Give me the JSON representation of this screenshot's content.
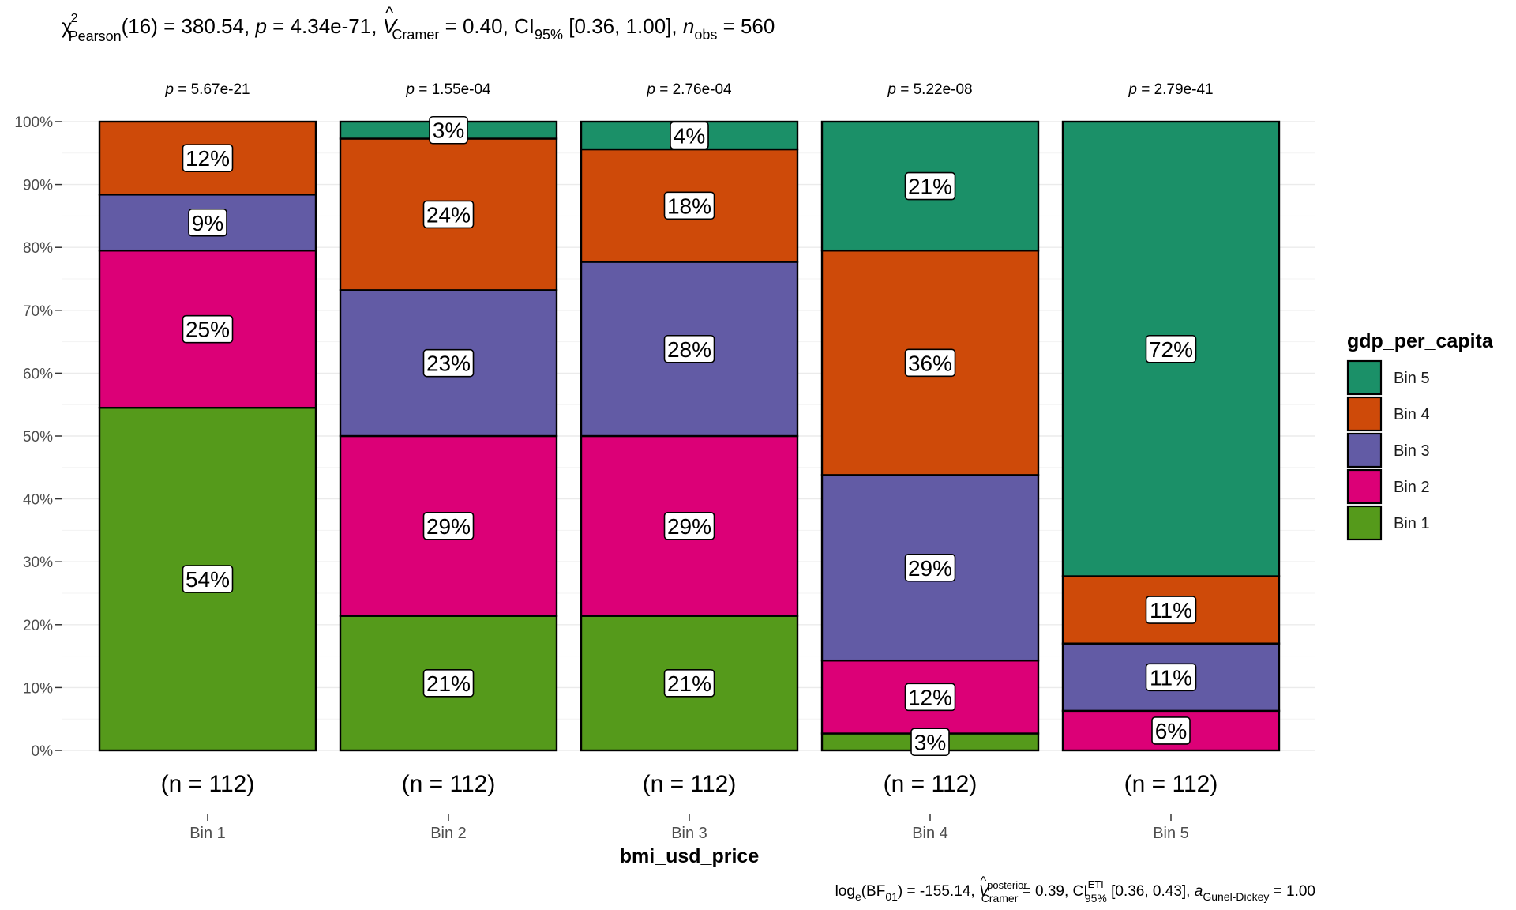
{
  "chart_data": {
    "type": "bar",
    "stacked": true,
    "percent": true,
    "subtitle": "χ²Pearson(16) = 380.54, p = 4.34e-71, V̂Cramer = 0.40, CI95% [0.36, 1.00], nobs = 560",
    "subtitle_parts": {
      "chi": "χ",
      "chi_sup": "2",
      "chi_sub": "Pearson",
      "chi_val": "(16) = 380.54, ",
      "p": "p",
      "p_val": " = 4.34e-71, ",
      "v": "V",
      "v_hat": "^",
      "v_sub": "Cramer",
      "v_val": " = 0.40, CI",
      "ci_sub": "95%",
      "ci_val": " [0.36, 1.00], ",
      "n": "n",
      "n_sub": "obs",
      "n_val": " = 560"
    },
    "caption": "loge(BF01) = -155.14, V̂posterior Cramer = 0.39, CIETI 95% [0.36, 0.43], aGunel-Dickey = 1.00",
    "caption_parts": {
      "log": "log",
      "log_sub": "e",
      "bf": "(BF",
      "bf_sub": "01",
      "bf_val": ") = -155.14, ",
      "v": "V",
      "v_hat": "^",
      "v_sup": "posterior",
      "v_sub": "Cramer",
      "v_val": " = 0.39, CI",
      "ci_sup": "ETI",
      "ci_sub": "95%",
      "ci_val": " [0.36, 0.43], ",
      "a": "a",
      "a_sub": "Gunel-Dickey",
      "a_val": " = 1.00"
    },
    "xlabel": "bmi_usd_price",
    "ylabel": "",
    "categories": [
      "Bin 1",
      "Bin 2",
      "Bin 3",
      "Bin 4",
      "Bin 5"
    ],
    "n_labels": [
      "(n = 112)",
      "(n = 112)",
      "(n = 112)",
      "(n = 112)",
      "(n = 112)"
    ],
    "p_labels": [
      "5.67e-21",
      "1.55e-04",
      "2.76e-04",
      "5.22e-08",
      "2.79e-41"
    ],
    "p_prefix": "p",
    "yticks": [
      "0%",
      "10%",
      "20%",
      "30%",
      "40%",
      "50%",
      "60%",
      "70%",
      "80%",
      "90%",
      "100%"
    ],
    "ylim": [
      0,
      100
    ],
    "legend_title": "gdp_per_capita",
    "legend_position": "right",
    "series": [
      {
        "name": "Bin 1",
        "color": "#559A1B",
        "values": [
          54.5,
          21.4,
          21.4,
          2.7,
          0
        ],
        "labels": [
          "54%",
          "21%",
          "21%",
          "3%",
          ""
        ]
      },
      {
        "name": "Bin 2",
        "color": "#DC0077",
        "values": [
          25.0,
          28.6,
          28.6,
          11.6,
          6.3
        ],
        "labels": [
          "25%",
          "29%",
          "29%",
          "12%",
          "6%"
        ]
      },
      {
        "name": "Bin 3",
        "color": "#625BA5",
        "values": [
          8.9,
          23.2,
          27.7,
          29.5,
          10.7
        ],
        "labels": [
          "9%",
          "23%",
          "28%",
          "29%",
          "11%"
        ]
      },
      {
        "name": "Bin 4",
        "color": "#CE4A09",
        "values": [
          11.6,
          24.1,
          17.9,
          35.7,
          10.7
        ],
        "labels": [
          "12%",
          "24%",
          "18%",
          "36%",
          "11%"
        ]
      },
      {
        "name": "Bin 5",
        "color": "#1B9068",
        "values": [
          0,
          2.7,
          4.4,
          20.5,
          72.3
        ],
        "labels": [
          "",
          "3%",
          "4%",
          "21%",
          "72%"
        ]
      }
    ],
    "legend_order": [
      "Bin 5",
      "Bin 4",
      "Bin 3",
      "Bin 2",
      "Bin 1"
    ],
    "grid": true
  }
}
